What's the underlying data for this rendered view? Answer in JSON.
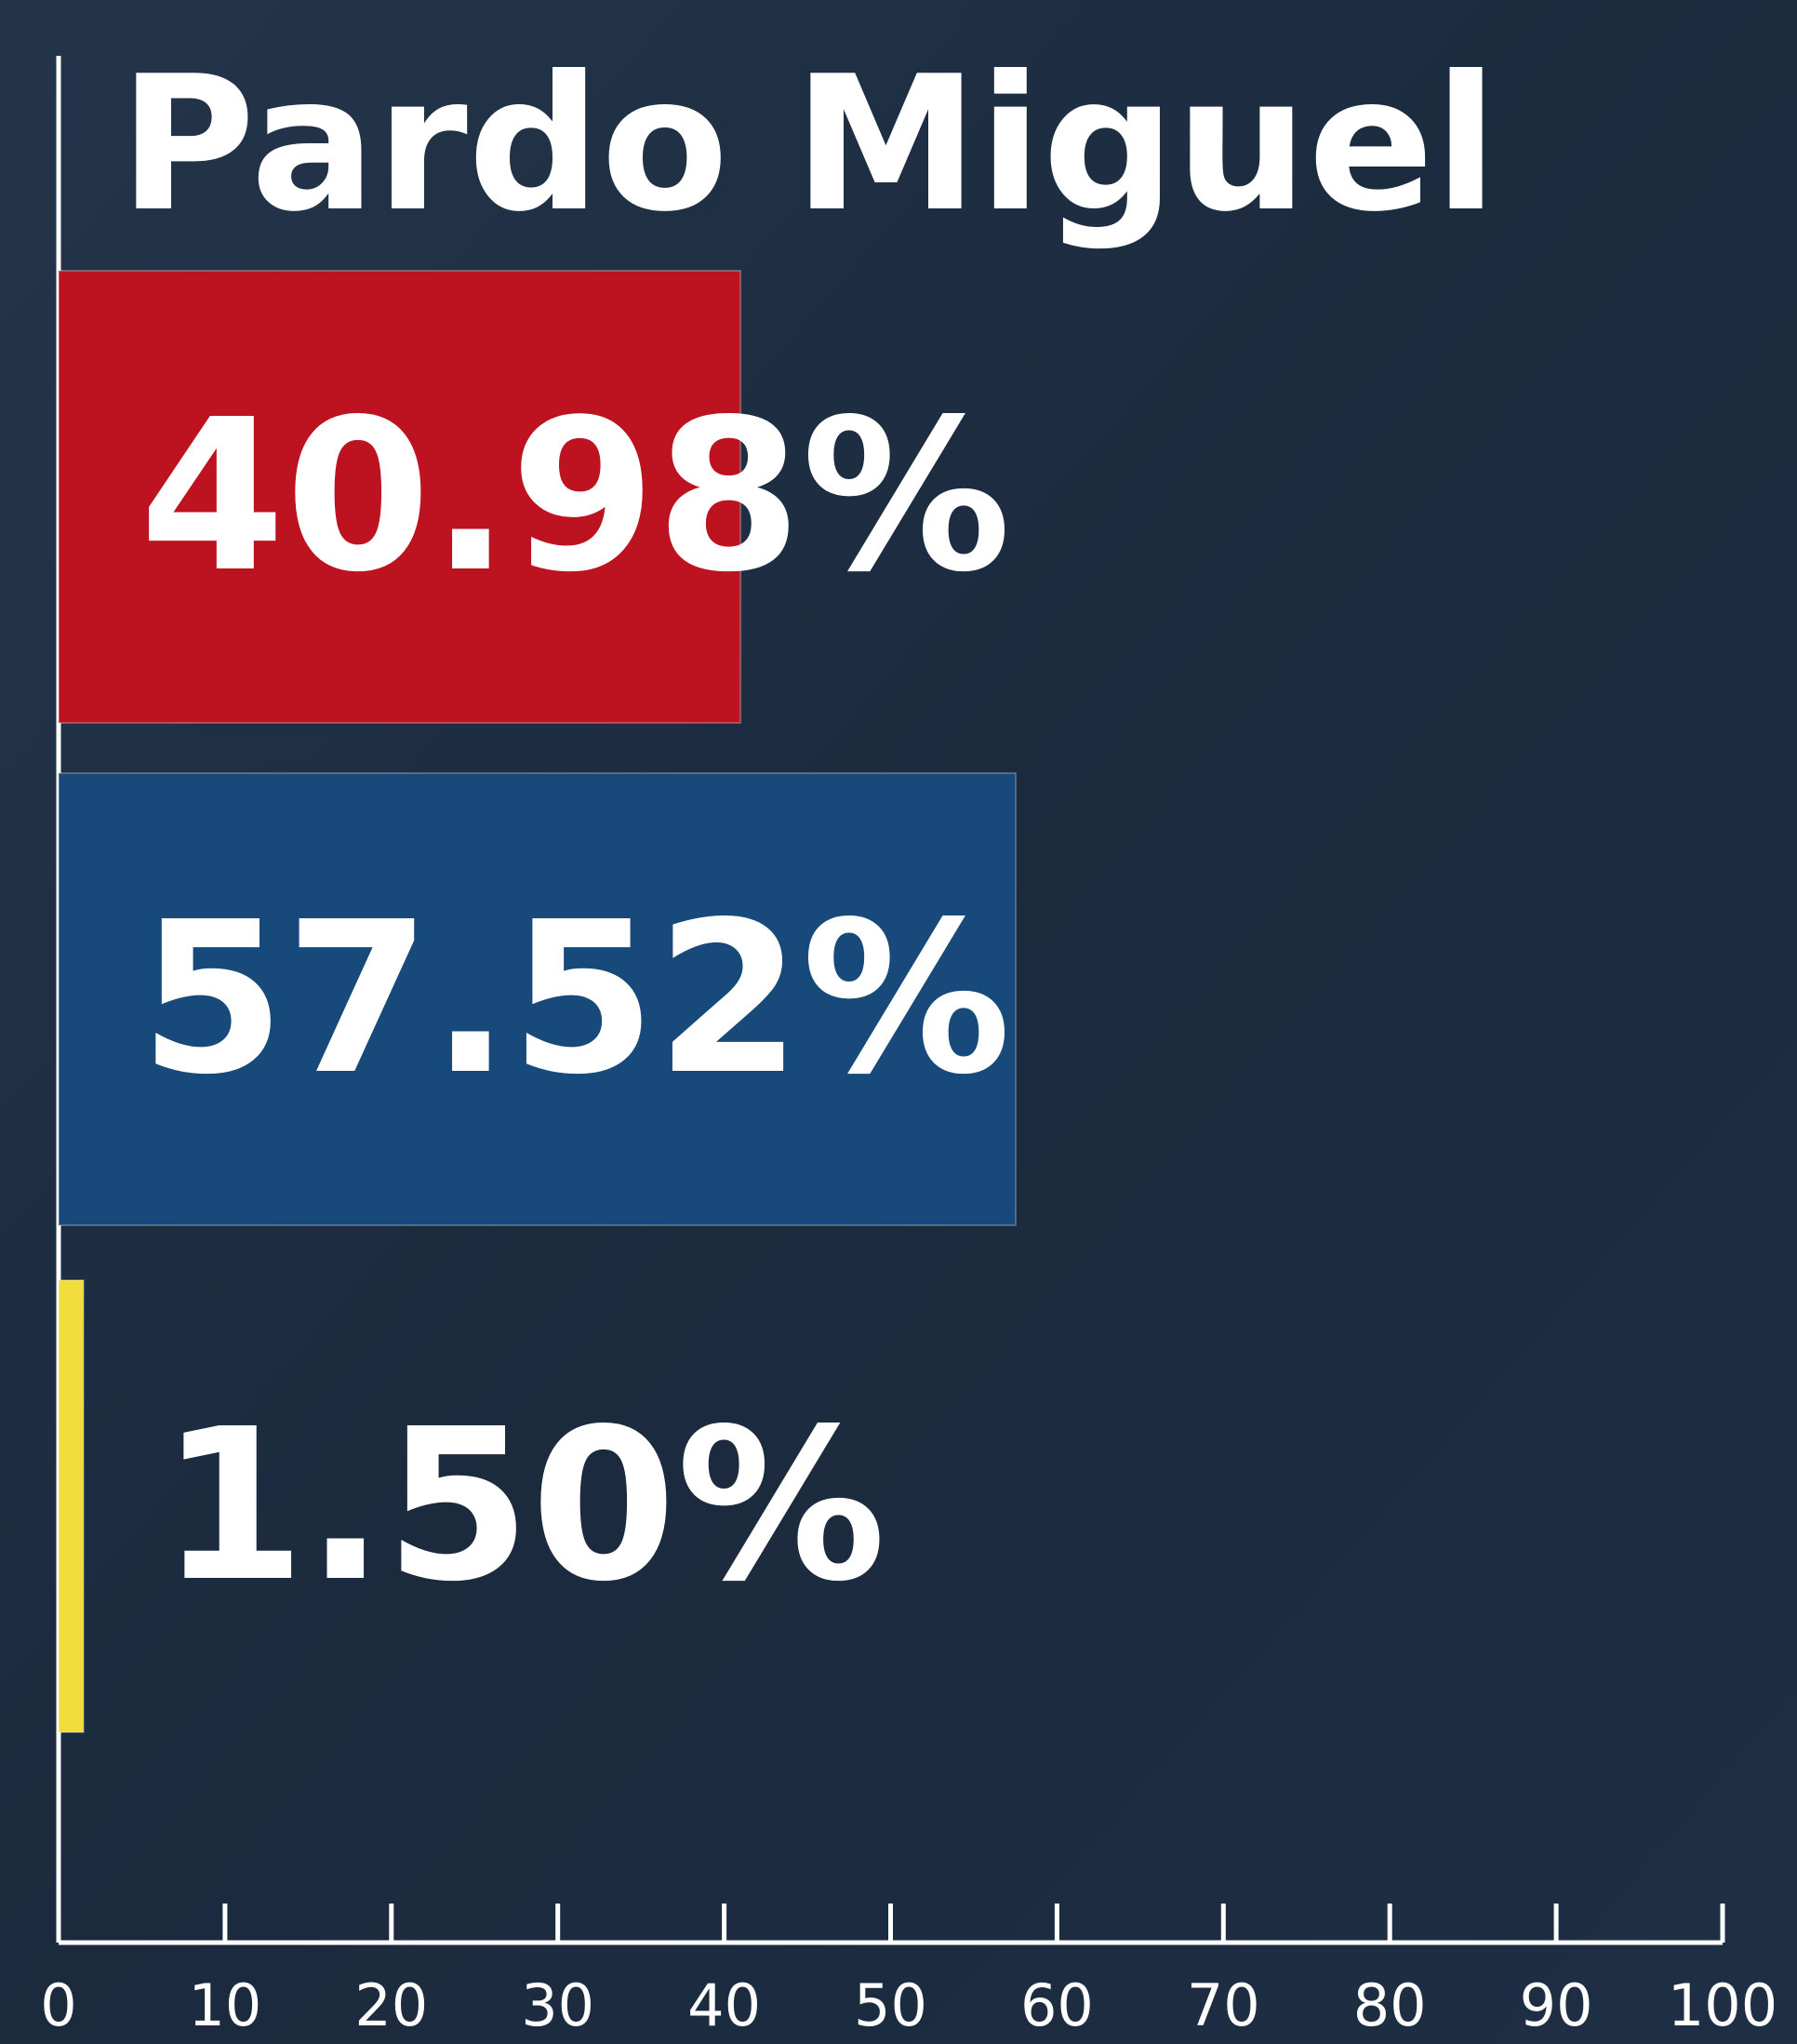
{
  "chart_data": {
    "type": "barh",
    "title": "Pardo Miguel",
    "values": [
      40.98,
      57.52,
      1.5
    ],
    "value_labels": [
      "40.98%",
      "57.52%",
      "1.50%"
    ],
    "colors": [
      "#bd1321",
      "#17497a",
      "#f0dc3a"
    ],
    "xlim": [
      0,
      100
    ],
    "xticks": [
      0,
      10,
      20,
      30,
      40,
      50,
      60,
      70,
      80,
      90,
      100
    ]
  }
}
